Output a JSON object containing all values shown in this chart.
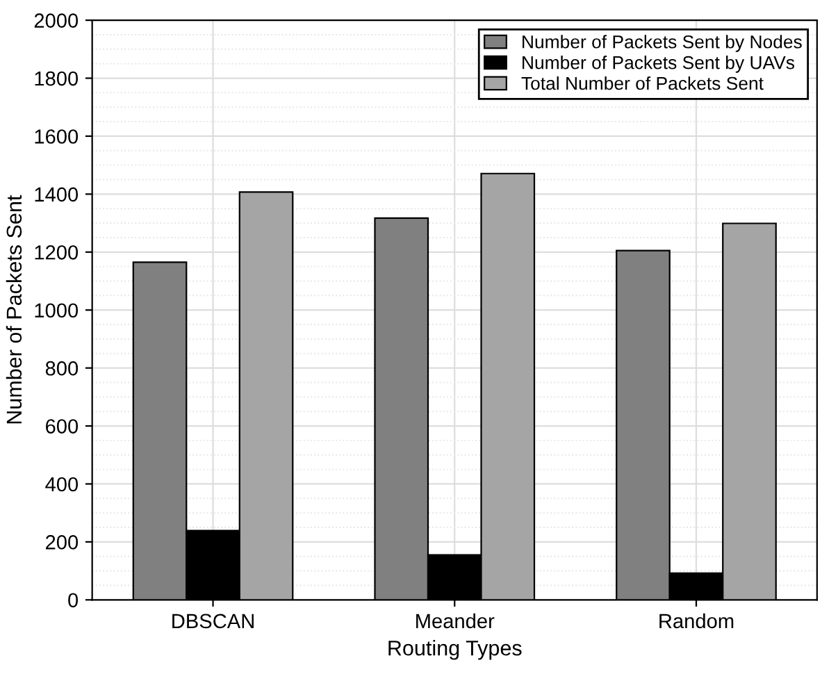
{
  "chart_data": {
    "type": "bar",
    "xlabel": "Routing Types",
    "ylabel": "Number of Packets Sent",
    "categories": [
      "DBSCAN",
      "Meander",
      "Random"
    ],
    "series": [
      {
        "name": "Number of Packets Sent by Nodes",
        "color": "#808080",
        "values": [
          1165,
          1317,
          1205
        ]
      },
      {
        "name": "Number of Packets Sent by UAVs",
        "color": "#000000",
        "values": [
          239,
          155,
          92
        ]
      },
      {
        "name": "Total Number of Packets Sent",
        "color": "#a5a5a5",
        "values": [
          1407,
          1471,
          1299
        ]
      }
    ],
    "ylim": [
      0,
      2000
    ],
    "yticks": [
      0,
      200,
      400,
      600,
      800,
      1000,
      1200,
      1400,
      1600,
      1800,
      2000
    ],
    "grid": true,
    "legend": "top right"
  }
}
